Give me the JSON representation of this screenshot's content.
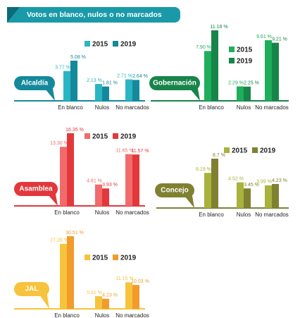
{
  "title": "Votos en blanco, nulos o no marcados",
  "chart_data": [
    {
      "type": "bar",
      "title": "Alcaldía",
      "categories": [
        "En blanco",
        "Nulos",
        "No marcados"
      ],
      "series": [
        {
          "name": "2015",
          "color": "#2bb5c2",
          "values": [
            3.77,
            2.13,
            2.71
          ],
          "value_labels": [
            "3.77 %",
            "2.13 %",
            "2.71 %"
          ]
        },
        {
          "name": "2019",
          "color": "#14899c",
          "values": [
            5.08,
            1.81,
            2.64
          ],
          "value_labels": [
            "5.08 %",
            "1.81 %",
            "2.64 %"
          ]
        }
      ]
    },
    {
      "type": "bar",
      "title": "Gobernación",
      "categories": [
        "En blanco",
        "Nulos",
        "No marcados"
      ],
      "series": [
        {
          "name": "2015",
          "color": "#1fae5b",
          "values": [
            7.9,
            2.29,
            9.61
          ],
          "value_labels": [
            "7.90 %",
            "2.29 %",
            "9.61 %"
          ]
        },
        {
          "name": "2019",
          "color": "#178549",
          "values": [
            11.18,
            2.25,
            9.21
          ],
          "value_labels": [
            "11.18 %",
            "2.25 %",
            "9.21 %"
          ]
        }
      ]
    },
    {
      "type": "bar",
      "title": "Asamblea",
      "categories": [
        "En blanco",
        "Nulos",
        "No marcados"
      ],
      "series": [
        {
          "name": "2015",
          "color": "#f26a6b",
          "values": [
            13.3,
            4.81,
            11.65
          ],
          "value_labels": [
            "13.30 %",
            "4.81 %",
            "11.65 %"
          ]
        },
        {
          "name": "2019",
          "color": "#e2383b",
          "values": [
            16.35,
            3.93,
            11.57
          ],
          "value_labels": [
            "16.35 %",
            "3.93 %",
            "11.57 %"
          ]
        }
      ]
    },
    {
      "type": "bar",
      "title": "Concejo",
      "categories": [
        "En blanco",
        "Nulos",
        "No marcados"
      ],
      "series": [
        {
          "name": "2015",
          "color": "#a9b23c",
          "values": [
            6.19,
            4.52,
            3.99
          ],
          "value_labels": [
            "6.19 %",
            "4.52 %",
            "3.99 %"
          ]
        },
        {
          "name": "2019",
          "color": "#7f8131",
          "values": [
            8.7,
            3.45,
            4.23
          ],
          "value_labels": [
            "8.7 %",
            "3.45 %",
            "4.23 %"
          ]
        }
      ]
    },
    {
      "type": "bar",
      "title": "JAL",
      "categories": [
        "En blanco",
        "Nulos",
        "No marcados"
      ],
      "series": [
        {
          "name": "2015",
          "color": "#f7c33c",
          "values": [
            27.28,
            5.31,
            11.15
          ],
          "value_labels": [
            "27.28 %",
            "5.31 %",
            "11.15 %"
          ]
        },
        {
          "name": "2019",
          "color": "#f29b2b",
          "values": [
            30.51,
            4.23,
            10.03
          ],
          "value_labels": [
            "30.51 %",
            "4.23 %",
            "10.03 %"
          ]
        }
      ]
    }
  ]
}
